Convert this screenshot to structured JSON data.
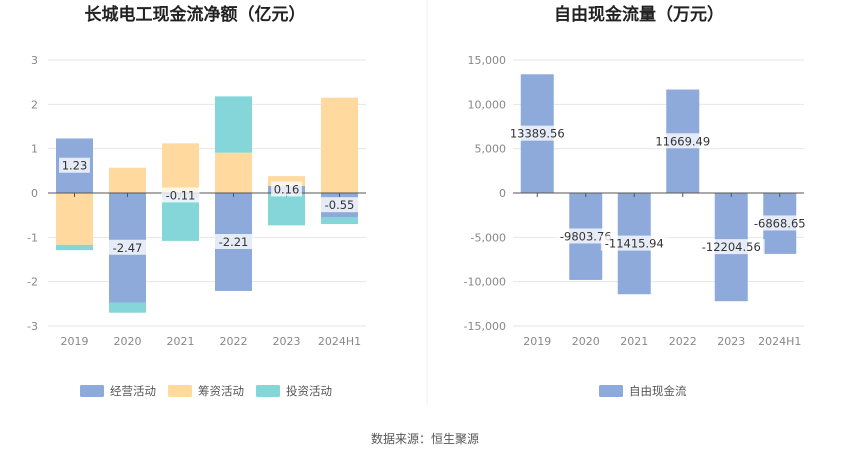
{
  "footer": {
    "source": "数据来源：恒生聚源"
  },
  "chart_data": [
    {
      "type": "bar",
      "stacked": true,
      "title": "长城电工现金流净额（亿元）",
      "categories": [
        "2019",
        "2020",
        "2021",
        "2022",
        "2023",
        "2024H1"
      ],
      "ylim": [
        -3,
        3
      ],
      "yticks": [
        -3,
        -2,
        -1,
        0,
        1,
        2,
        3
      ],
      "grid": true,
      "legend_position": "bottom",
      "series": [
        {
          "name": "经营活动",
          "color": "#8eaadb",
          "values": [
            1.23,
            -2.47,
            -0.11,
            -2.21,
            0.16,
            -0.55
          ],
          "labels": [
            "1.23",
            "-2.47",
            "-0.11",
            "-2.21",
            "0.16",
            "-0.55"
          ]
        },
        {
          "name": "筹资活动",
          "color": "#ffd99e",
          "values": [
            -1.17,
            0.57,
            1.12,
            0.91,
            0.22,
            2.15
          ]
        },
        {
          "name": "投资活动",
          "color": "#85d6d8",
          "values": [
            -0.12,
            -0.23,
            -0.97,
            1.27,
            -0.73,
            -0.15
          ]
        }
      ]
    },
    {
      "type": "bar",
      "title": "自由现金流量（万元）",
      "categories": [
        "2019",
        "2020",
        "2021",
        "2022",
        "2023",
        "2024H1"
      ],
      "ylim": [
        -15000,
        15000
      ],
      "yticks": [
        -15000,
        -10000,
        -5000,
        0,
        5000,
        10000,
        15000
      ],
      "ytick_labels": [
        "-15,000",
        "-10,000",
        "-5,000",
        "0",
        "5,000",
        "10,000",
        "15,000"
      ],
      "grid": true,
      "legend_position": "bottom",
      "series": [
        {
          "name": "自由现金流",
          "color": "#8eaadb",
          "values": [
            13389.56,
            -9803.76,
            -11415.94,
            11669.49,
            -12204.56,
            -6868.65
          ],
          "labels": [
            "13389.56",
            "-9803.76",
            "-11415.94",
            "11669.49",
            "-12204.56",
            "-6868.65"
          ]
        }
      ]
    }
  ]
}
